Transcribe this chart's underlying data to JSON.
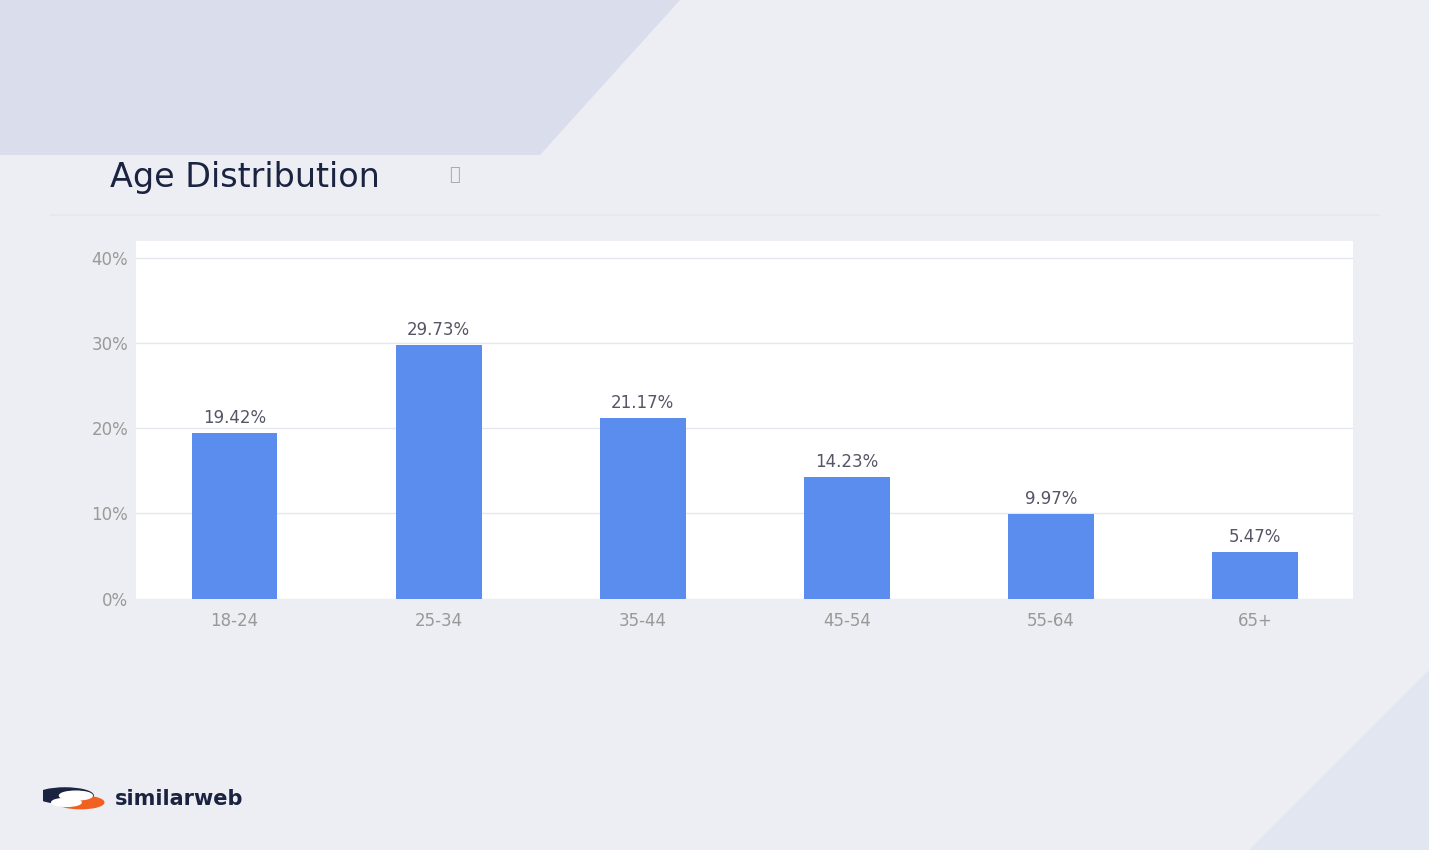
{
  "title": "Age Distribution",
  "info_icon": "ⓘ",
  "categories": [
    "18-24",
    "25-34",
    "35-44",
    "45-54",
    "55-64",
    "65+"
  ],
  "values": [
    19.42,
    29.73,
    21.17,
    14.23,
    9.97,
    5.47
  ],
  "labels": [
    "19.42%",
    "29.73%",
    "21.17%",
    "14.23%",
    "9.97%",
    "5.47%"
  ],
  "bar_color": "#5B8DEF",
  "background_outer": "#EDEEF3",
  "background_card": "#FFFFFF",
  "title_color": "#1a2340",
  "axis_label_color": "#999999",
  "grid_color": "#E5E7EE",
  "bar_label_color": "#555566",
  "separator_color": "#E5E7EE",
  "deco_color": "#C9D0E8",
  "deco_bottom_color": "#D8DFEF",
  "ylim": [
    0,
    42
  ],
  "yticks": [
    0,
    10,
    20,
    30,
    40
  ],
  "ytick_labels": [
    "0%",
    "10%",
    "20%",
    "30%",
    "40%"
  ],
  "title_fontsize": 24,
  "bar_label_fontsize": 12,
  "tick_fontsize": 12,
  "logo_text": "similarweb",
  "logo_color": "#1a2340",
  "logo_icon_dark": "#1a2340",
  "logo_icon_orange": "#F06020",
  "fig_width": 14.29,
  "fig_height": 8.5,
  "dpi": 100
}
